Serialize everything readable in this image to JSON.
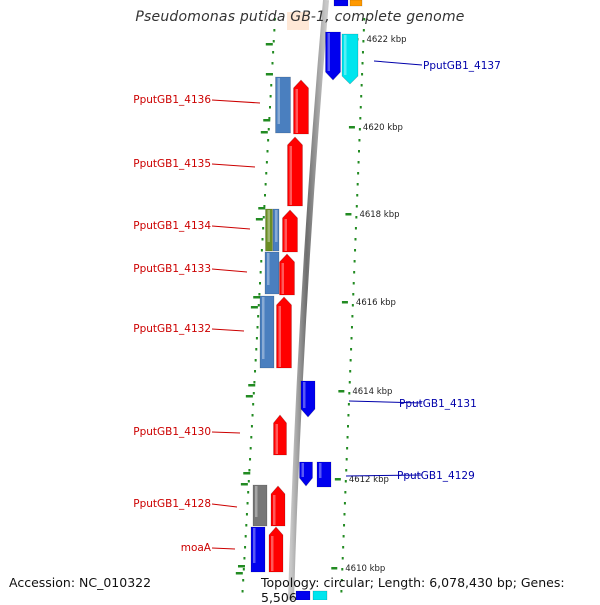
{
  "title": "Pseudomonas putida GB-1, complete genome",
  "footer": {
    "accession": "Accession: NC_010322",
    "stats": "Topology: circular; Length: 6,078,430 bp; Genes: 5,506"
  },
  "colors": {
    "forward_gene": "#ff0000",
    "reverse_gene": "#0000ee",
    "steel_gene": "#4a7fbf",
    "olive_gene": "#6b8e23",
    "gray_gene": "#777777",
    "cyan_gene": "#00e5ee",
    "backbone": "#8c8c8c",
    "tick": "#228b22",
    "label_left": "#cc0000",
    "label_right": "#0000aa"
  },
  "scale_labels": [
    "4622 kbp",
    "4620 kbp",
    "4618 kbp",
    "4616 kbp",
    "4614 kbp",
    "4612 kbp",
    "4610 kbp"
  ],
  "gene_labels": {
    "left": [
      "PputGB1_4136",
      "PputGB1_4135",
      "PputGB1_4134",
      "PputGB1_4133",
      "PputGB1_4132",
      "PputGB1_4130",
      "PputGB1_4128",
      "moaA"
    ],
    "right": [
      "PputGB1_4137",
      "PputGB1_4131",
      "PputGB1_4129"
    ]
  }
}
